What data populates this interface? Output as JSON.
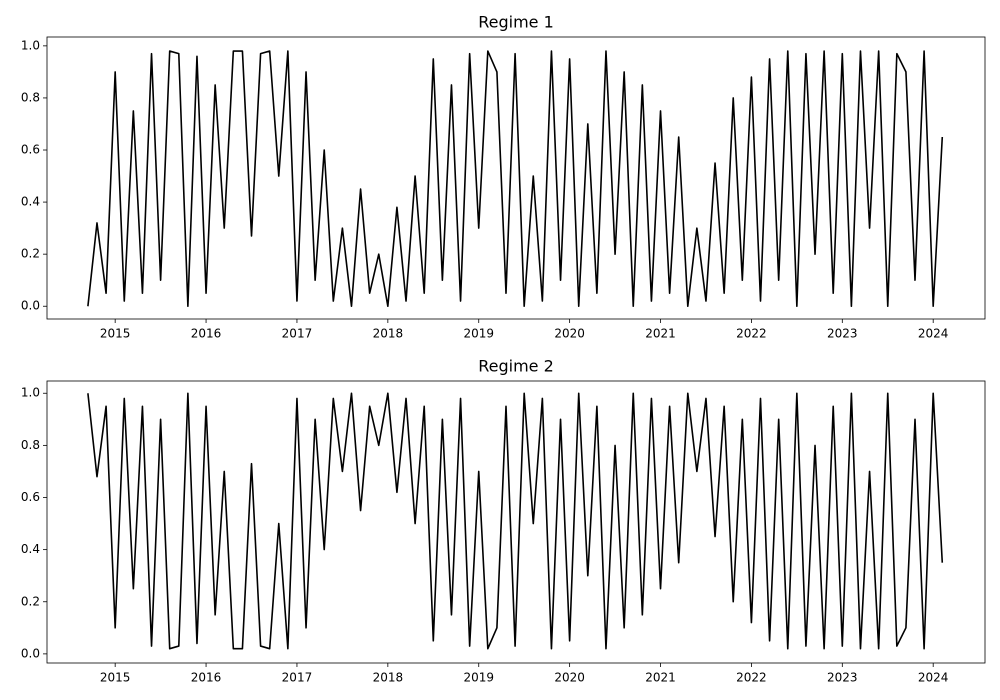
{
  "chart_data": [
    {
      "type": "line",
      "title": "Regime 1",
      "x": [
        2014.7,
        2014.8,
        2014.9,
        2015.0,
        2015.1,
        2015.2,
        2015.3,
        2015.4,
        2015.5,
        2015.6,
        2015.7,
        2015.8,
        2015.9,
        2016.0,
        2016.1,
        2016.2,
        2016.3,
        2016.4,
        2016.5,
        2016.6,
        2016.7,
        2016.8,
        2016.9,
        2017.0,
        2017.1,
        2017.2,
        2017.3,
        2017.4,
        2017.5,
        2017.6,
        2017.7,
        2017.8,
        2017.9,
        2018.0,
        2018.1,
        2018.2,
        2018.3,
        2018.4,
        2018.5,
        2018.6,
        2018.7,
        2018.8,
        2018.9,
        2019.0,
        2019.1,
        2019.2,
        2019.3,
        2019.4,
        2019.5,
        2019.6,
        2019.7,
        2019.8,
        2019.9,
        2020.0,
        2020.1,
        2020.2,
        2020.3,
        2020.4,
        2020.5,
        2020.6,
        2020.7,
        2020.8,
        2020.9,
        2021.0,
        2021.1,
        2021.2,
        2021.3,
        2021.4,
        2021.5,
        2021.6,
        2021.7,
        2021.8,
        2021.9,
        2022.0,
        2022.1,
        2022.2,
        2022.3,
        2022.4,
        2022.5,
        2022.6,
        2022.7,
        2022.8,
        2022.9,
        2023.0,
        2023.1,
        2023.2,
        2023.3,
        2023.4,
        2023.5,
        2023.6,
        2023.7,
        2023.8,
        2023.9,
        2024.0,
        2024.1
      ],
      "series": [
        {
          "color": "#000000",
          "values": [
            0.0,
            0.32,
            0.05,
            0.9,
            0.02,
            0.75,
            0.05,
            0.97,
            0.1,
            0.98,
            0.97,
            0.0,
            0.96,
            0.05,
            0.85,
            0.3,
            0.98,
            0.98,
            0.27,
            0.97,
            0.98,
            0.5,
            0.98,
            0.02,
            0.9,
            0.1,
            0.6,
            0.02,
            0.3,
            0.0,
            0.45,
            0.05,
            0.2,
            0.0,
            0.38,
            0.02,
            0.5,
            0.05,
            0.95,
            0.1,
            0.85,
            0.02,
            0.97,
            0.3,
            0.98,
            0.9,
            0.05,
            0.97,
            0.0,
            0.5,
            0.02,
            0.98,
            0.1,
            0.95,
            0.0,
            0.7,
            0.05,
            0.98,
            0.2,
            0.9,
            0.0,
            0.85,
            0.02,
            0.75,
            0.05,
            0.65,
            0.0,
            0.3,
            0.02,
            0.55,
            0.05,
            0.8,
            0.1,
            0.88,
            0.02,
            0.95,
            0.1,
            0.98,
            0.0,
            0.97,
            0.2,
            0.98,
            0.05,
            0.97,
            0.0,
            0.98,
            0.3,
            0.98,
            0.0,
            0.97,
            0.9,
            0.1,
            0.98,
            0.0,
            0.65
          ]
        }
      ],
      "xlim": [
        2014.25,
        2024.57
      ],
      "xticks": [
        2015,
        2016,
        2017,
        2018,
        2019,
        2020,
        2021,
        2022,
        2023,
        2024
      ],
      "ylim": [
        -0.049,
        1.034
      ],
      "yticks": [
        {
          "value": 0,
          "label": "0.0"
        },
        0.2,
        0.4,
        0.6,
        0.8,
        {
          "value": 1,
          "label": "1.0"
        }
      ]
    },
    {
      "type": "line",
      "title": "Regime 2",
      "x": [
        2014.7,
        2014.8,
        2014.9,
        2015.0,
        2015.1,
        2015.2,
        2015.3,
        2015.4,
        2015.5,
        2015.6,
        2015.7,
        2015.8,
        2015.9,
        2016.0,
        2016.1,
        2016.2,
        2016.3,
        2016.4,
        2016.5,
        2016.6,
        2016.7,
        2016.8,
        2016.9,
        2017.0,
        2017.1,
        2017.2,
        2017.3,
        2017.4,
        2017.5,
        2017.6,
        2017.7,
        2017.8,
        2017.9,
        2018.0,
        2018.1,
        2018.2,
        2018.3,
        2018.4,
        2018.5,
        2018.6,
        2018.7,
        2018.8,
        2018.9,
        2019.0,
        2019.1,
        2019.2,
        2019.3,
        2019.4,
        2019.5,
        2019.6,
        2019.7,
        2019.8,
        2019.9,
        2020.0,
        2020.1,
        2020.2,
        2020.3,
        2020.4,
        2020.5,
        2020.6,
        2020.7,
        2020.8,
        2020.9,
        2021.0,
        2021.1,
        2021.2,
        2021.3,
        2021.4,
        2021.5,
        2021.6,
        2021.7,
        2021.8,
        2021.9,
        2022.0,
        2022.1,
        2022.2,
        2022.3,
        2022.4,
        2022.5,
        2022.6,
        2022.7,
        2022.8,
        2022.9,
        2023.0,
        2023.1,
        2023.2,
        2023.3,
        2023.4,
        2023.5,
        2023.6,
        2023.7,
        2023.8,
        2023.9,
        2024.0,
        2024.1
      ],
      "series": [
        {
          "color": "#000000",
          "values": [
            1.0,
            0.68,
            0.95,
            0.1,
            0.98,
            0.25,
            0.95,
            0.03,
            0.9,
            0.02,
            0.03,
            1.0,
            0.04,
            0.95,
            0.15,
            0.7,
            0.02,
            0.02,
            0.73,
            0.03,
            0.02,
            0.5,
            0.02,
            0.98,
            0.1,
            0.9,
            0.4,
            0.98,
            0.7,
            1.0,
            0.55,
            0.95,
            0.8,
            1.0,
            0.62,
            0.98,
            0.5,
            0.95,
            0.05,
            0.9,
            0.15,
            0.98,
            0.03,
            0.7,
            0.02,
            0.1,
            0.95,
            0.03,
            1.0,
            0.5,
            0.98,
            0.02,
            0.9,
            0.05,
            1.0,
            0.3,
            0.95,
            0.02,
            0.8,
            0.1,
            1.0,
            0.15,
            0.98,
            0.25,
            0.95,
            0.35,
            1.0,
            0.7,
            0.98,
            0.45,
            0.95,
            0.2,
            0.9,
            0.12,
            0.98,
            0.05,
            0.9,
            0.02,
            1.0,
            0.03,
            0.8,
            0.02,
            0.95,
            0.03,
            1.0,
            0.02,
            0.7,
            0.02,
            1.0,
            0.03,
            0.1,
            0.9,
            0.02,
            1.0,
            0.35
          ]
        }
      ],
      "xlim": [
        2014.25,
        2024.57
      ],
      "xticks": [
        2015,
        2016,
        2017,
        2018,
        2019,
        2020,
        2021,
        2022,
        2023,
        2024
      ],
      "ylim": [
        -0.035,
        1.047
      ],
      "yticks": [
        {
          "value": 0,
          "label": "0.0"
        },
        0.2,
        0.4,
        0.6,
        0.8,
        {
          "value": 1,
          "label": "1.0"
        }
      ]
    }
  ]
}
